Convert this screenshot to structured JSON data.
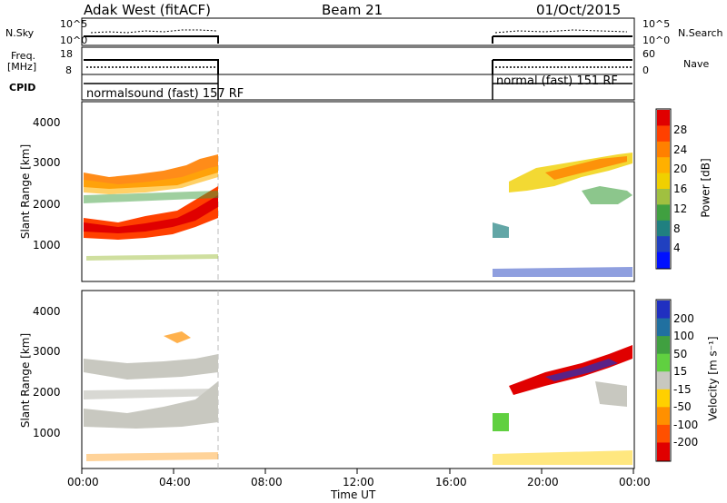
{
  "header": {
    "left_title": "Adak West (fitACF)",
    "center_title": "Beam 21",
    "right_title": "01/Oct/2015"
  },
  "top_panels": {
    "nsky_label": "N.Sky",
    "nsky_ticks": [
      "10^5",
      "10^0"
    ],
    "nsearch_label": "N.Search",
    "nsearch_ticks": [
      "10^5",
      "10^0"
    ],
    "freq_label_line1": "Freq.",
    "freq_label_line2": "[MHz]",
    "freq_ticks": [
      "18",
      "8"
    ],
    "nave_label": "Nave",
    "nave_ticks": [
      "60",
      "0"
    ],
    "cpid_label": "CPID",
    "cpid_left": "normalsound (fast) 157 RF",
    "cpid_right": "normal (fast) 151 RF"
  },
  "power_panel": {
    "ylabel": "Slant Range [km]",
    "yticks": [
      "4000",
      "3000",
      "2000",
      "1000"
    ],
    "cbar_label": "Power [dB]",
    "cbar_ticks": [
      "28",
      "24",
      "20",
      "16",
      "12",
      "8",
      "4"
    ],
    "cbar_colors": [
      "#e00000",
      "#ff4000",
      "#ff8000",
      "#ffb000",
      "#f0d000",
      "#a0c040",
      "#40a040",
      "#208080",
      "#2040c0",
      "#0010ff"
    ]
  },
  "velocity_panel": {
    "ylabel": "Slant Range [km]",
    "yticks": [
      "4000",
      "3000",
      "2000",
      "1000"
    ],
    "cbar_label": "Velocity [m s⁻¹]",
    "cbar_ticks": [
      "200",
      "100",
      "50",
      "15",
      "-15",
      "-50",
      "-100",
      "-200"
    ],
    "cbar_colors": [
      "#2030c0",
      "#2070a0",
      "#40a040",
      "#60d040",
      "#c8c8c0",
      "#ffd000",
      "#ff9000",
      "#ff5000",
      "#e00000"
    ],
    "ground_scatter_color": "#c8c8c0"
  },
  "xaxis": {
    "ticks": [
      "00:00",
      "04:00",
      "08:00",
      "12:00",
      "16:00",
      "20:00",
      "00:00"
    ],
    "label": "Time UT"
  },
  "chart_data": {
    "type": "heatmap",
    "title": "Adak West (fitACF) Beam 21 01/Oct/2015",
    "xlabel": "Time UT",
    "ylabel": "Slant Range [km]",
    "xlim_hours": [
      0,
      24
    ],
    "ylim_km": [
      180,
      4500
    ],
    "data_intervals_ut_hours": [
      [
        0,
        6
      ],
      [
        18,
        24
      ]
    ],
    "cpid_segments": [
      {
        "label": "normalsound (fast) 157 RF",
        "start_hour": 0,
        "end_hour": 6
      },
      {
        "label": "normal (fast) 151 RF",
        "start_hour": 18,
        "end_hour": 24
      }
    ],
    "power_features": [
      {
        "description": "band",
        "start_hour": 0,
        "end_hour": 6,
        "range_km_start": 1300,
        "range_km_end": 1800,
        "power_db": 28
      },
      {
        "description": "band",
        "start_hour": 0,
        "end_hour": 6,
        "range_km_start": 2600,
        "range_km_end": 2300,
        "power_db": 20
      },
      {
        "description": "band",
        "start_hour": 18,
        "end_hour": 24,
        "range_km_start": 2600,
        "range_km_end": 3100,
        "power_db": 16
      }
    ],
    "velocity_features": [
      {
        "description": "ground scatter",
        "start_hour": 0,
        "end_hour": 6,
        "range_km_start": 1400,
        "range_km_end": 1800
      },
      {
        "description": "negative velocity band",
        "start_hour": 19.5,
        "end_hour": 23,
        "range_km_start": 2500,
        "range_km_end": 3200,
        "velocity_ms": -200
      }
    ],
    "colorbars": [
      {
        "name": "Power [dB]",
        "ticks": [
          28,
          24,
          20,
          16,
          12,
          8,
          4
        ]
      },
      {
        "name": "Velocity [m s-1]",
        "ticks": [
          200,
          100,
          50,
          15,
          -15,
          -50,
          -100,
          -200
        ]
      }
    ]
  }
}
